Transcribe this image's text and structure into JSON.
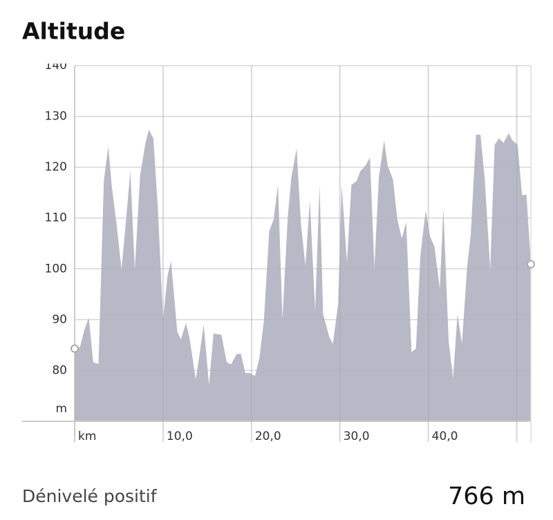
{
  "chart_data": {
    "type": "area",
    "title": "Altitude",
    "x": [
      0,
      0.6,
      1.1,
      1.6,
      2.1,
      2.7,
      3.3,
      3.8,
      4.2,
      4.7,
      5.3,
      5.8,
      6.3,
      6.8,
      7.4,
      8.0,
      8.4,
      8.9,
      9.4,
      10.0,
      10.5,
      10.9,
      11.6,
      12.0,
      12.6,
      13.0,
      13.7,
      14.1,
      14.6,
      15.2,
      15.7,
      16.6,
      17.2,
      17.7,
      18.3,
      18.8,
      19.3,
      19.8,
      20.4,
      20.9,
      21.4,
      22.0,
      22.5,
      23.0,
      23.5,
      24.1,
      24.5,
      25.1,
      25.6,
      26.1,
      26.6,
      27.2,
      27.7,
      28.1,
      28.8,
      29.2,
      29.8,
      30.2,
      30.8,
      31.3,
      31.9,
      32.3,
      32.9,
      33.4,
      33.9,
      34.4,
      35.0,
      35.4,
      36.0,
      36.5,
      37.0,
      37.5,
      38.1,
      38.6,
      39.1,
      39.7,
      40.2,
      40.7,
      41.3,
      41.7,
      42.3,
      42.8,
      43.3,
      43.8,
      44.4,
      44.8,
      45.4,
      45.9,
      46.4,
      47.0,
      47.5,
      48.0,
      48.5,
      49.1,
      49.5,
      50.1,
      50.6,
      51.1,
      51.6
    ],
    "values": [
      84.3,
      84.6,
      88,
      90.4,
      81.6,
      81.3,
      117.3,
      124.1,
      116.2,
      109.4,
      99.9,
      109.4,
      119.2,
      99.9,
      118.3,
      124.7,
      127.4,
      125.7,
      112.2,
      90.1,
      98.6,
      101.5,
      87.7,
      86.1,
      89.3,
      86.3,
      78.2,
      82.9,
      89.0,
      77.1,
      87.3,
      87.0,
      81.6,
      81.2,
      83.2,
      83.3,
      79.5,
      79.5,
      78.9,
      82.5,
      89.7,
      107.4,
      109.7,
      116.5,
      90.1,
      110.1,
      117.9,
      123.7,
      108.8,
      100.6,
      113.5,
      91.8,
      116.5,
      91.1,
      86.6,
      85.2,
      93.1,
      116.5,
      101.3,
      116.5,
      117.3,
      119.2,
      120.3,
      121.9,
      100.2,
      117.9,
      125.3,
      120.3,
      117.6,
      109.7,
      106.0,
      109.2,
      83.6,
      84.3,
      102.6,
      111.5,
      106.4,
      104.3,
      96.1,
      111.9,
      85.7,
      78.5,
      91.1,
      85.2,
      100.6,
      106.7,
      126.4,
      126.4,
      117.3,
      99.9,
      124.4,
      125.7,
      124.8,
      126.7,
      125.3,
      124.4,
      114.5,
      114.6,
      100.9
    ],
    "color": "#b9b8c6",
    "xlim": [
      0,
      51.6
    ],
    "ylim": [
      70,
      140
    ],
    "xticks": [
      {
        "value": 0,
        "label": "km"
      },
      {
        "value": 10,
        "label": "10,0"
      },
      {
        "value": 20,
        "label": "20,0"
      },
      {
        "value": 30,
        "label": "30,0"
      },
      {
        "value": 40,
        "label": "40,0"
      },
      {
        "value": 50,
        "label": null
      }
    ],
    "yticks": [
      80,
      90,
      100,
      110,
      120,
      130,
      140
    ],
    "y_unit": "m",
    "grid": true
  },
  "stats": {
    "label": "Dénivelé positif",
    "value": "766 m"
  }
}
